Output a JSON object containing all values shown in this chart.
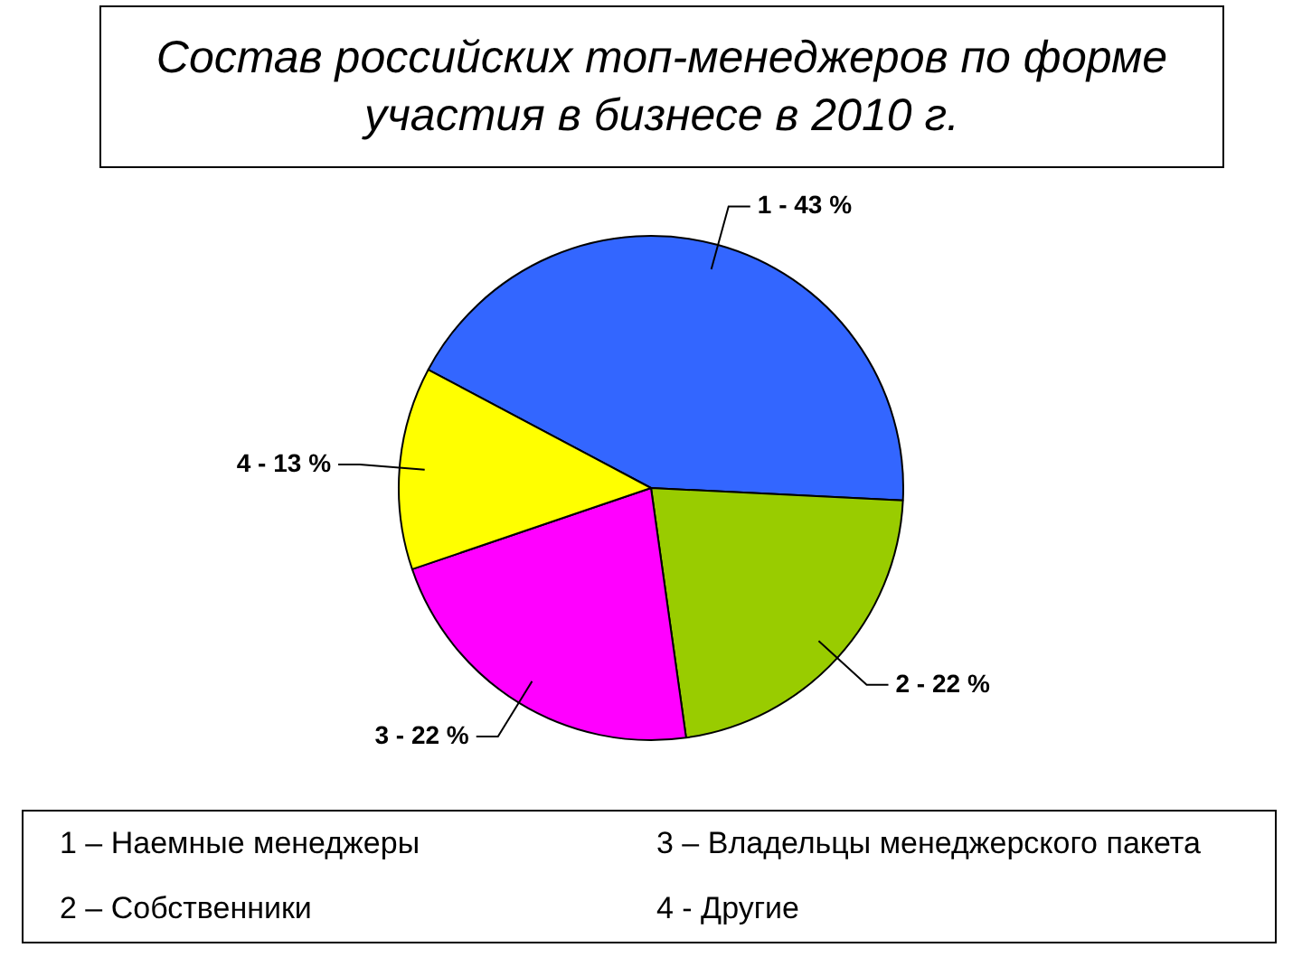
{
  "chart_data": {
    "type": "pie",
    "title": "Состав российских топ-менеджеров по форме участия в бизнесе в 2010 г.",
    "categories": [
      "1",
      "2",
      "3",
      "4"
    ],
    "values": [
      43,
      22,
      22,
      13
    ],
    "colors": [
      "#3366ff",
      "#99cc00",
      "#ff00ff",
      "#ffff00"
    ],
    "value_labels": [
      "43 %",
      "22 %",
      "22 %",
      "13 %"
    ],
    "annotations": [
      "1 – Наемные менеджеры",
      "2 – Собственники",
      "3 – Владельцы менеджерского пакета",
      "4 - Другие"
    ]
  }
}
